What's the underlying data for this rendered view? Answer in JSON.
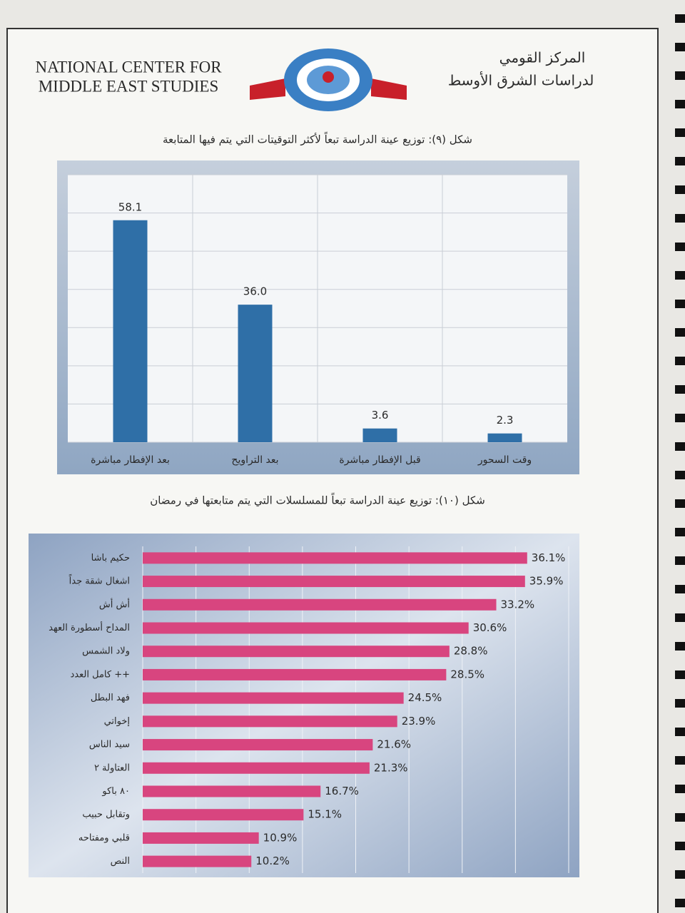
{
  "header": {
    "english_name": [
      "NATIONAL CENTER FOR",
      "MIDDLE EAST STUDIES"
    ],
    "arabic_name": [
      "المركز القومي",
      "لدراسات الشرق الأوسط"
    ]
  },
  "chart_data": [
    {
      "type": "bar",
      "orientation": "vertical",
      "title": "شكل (٩): توزيع عينة الدراسة تبعاً لأكثر التوقيتات التي يتم فيها المتابعة",
      "categories": [
        "بعد الإفطار مباشرة",
        "بعد التراويح",
        "قبل الإفطار مباشرة",
        "وقت السحور"
      ],
      "values": [
        58.1,
        36.0,
        3.6,
        2.3
      ],
      "value_labels": [
        "58.1",
        "36.0",
        "3.6",
        "2.3"
      ],
      "color": "#2f6fa7",
      "ylim": [
        0,
        70
      ],
      "yticks": [
        0,
        10,
        20,
        30,
        40,
        50,
        60,
        70
      ],
      "grid": true
    },
    {
      "type": "bar",
      "orientation": "horizontal",
      "title": "شكل (١٠): توزيع عينة الدراسة تبعاً للمسلسلات التي يتم متابعتها في رمضان",
      "categories": [
        "حكيم باشا",
        "اشغال شقة جداً",
        "أش أش",
        "المداح أسطورة العهد",
        "ولاد الشمس",
        "كامل العدد ++",
        "فهد البطل",
        "إخواتي",
        "سيد الناس",
        "العتاولة ٢",
        "٨٠ باكو",
        "وتقابل حبيب",
        "قلبي ومفتاحه",
        "النص"
      ],
      "values": [
        36.1,
        35.9,
        33.2,
        30.6,
        28.8,
        28.5,
        24.5,
        23.9,
        21.6,
        21.3,
        16.7,
        15.1,
        10.9,
        10.2
      ],
      "value_labels": [
        "36.1%",
        "35.9%",
        "33.2%",
        "30.6%",
        "28.8%",
        "28.5%",
        "24.5%",
        "23.9%",
        "21.6%",
        "21.3%",
        "16.7%",
        "15.1%",
        "10.9%",
        "10.2%"
      ],
      "color": "#d8457f",
      "xlim": [
        0,
        40
      ],
      "xticks": [
        0,
        5,
        10,
        15,
        20,
        25,
        30,
        35,
        40
      ],
      "grid": true
    }
  ]
}
